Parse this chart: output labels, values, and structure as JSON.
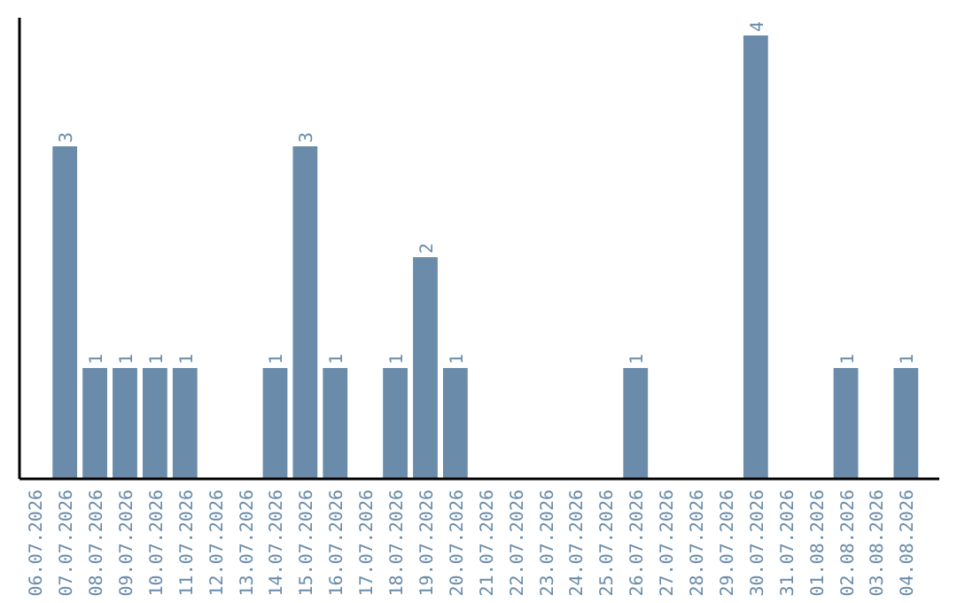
{
  "chart_data": {
    "type": "bar",
    "categories": [
      "06.07.2026",
      "07.07.2026",
      "08.07.2026",
      "09.07.2026",
      "10.07.2026",
      "11.07.2026",
      "12.07.2026",
      "13.07.2026",
      "14.07.2026",
      "15.07.2026",
      "16.07.2026",
      "17.07.2026",
      "18.07.2026",
      "19.07.2026",
      "20.07.2026",
      "21.07.2026",
      "22.07.2026",
      "23.07.2026",
      "24.07.2026",
      "25.07.2026",
      "26.07.2026",
      "27.07.2026",
      "28.07.2026",
      "29.07.2026",
      "30.07.2026",
      "31.07.2026",
      "01.08.2026",
      "02.08.2026",
      "03.08.2026",
      "04.08.2026"
    ],
    "values": [
      null,
      3,
      1,
      1,
      1,
      1,
      null,
      null,
      1,
      3,
      1,
      null,
      1,
      2,
      1,
      null,
      null,
      null,
      null,
      null,
      1,
      null,
      null,
      null,
      4,
      null,
      null,
      1,
      null,
      1
    ],
    "color": "#6a8caa",
    "data_labels": true,
    "tick_labels": "x"
  }
}
